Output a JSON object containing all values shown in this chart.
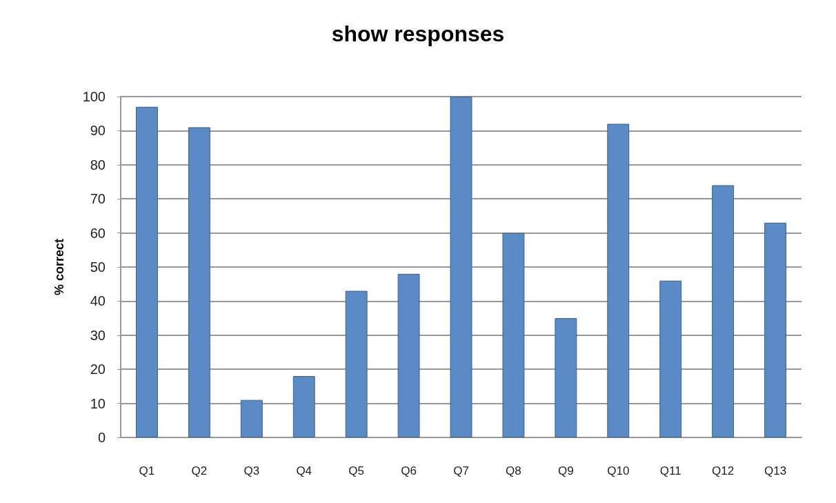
{
  "chart_data": {
    "type": "bar",
    "title": "show responses",
    "ylabel": "% correct",
    "categories": [
      "Q1",
      "Q2",
      "Q3",
      "Q4",
      "Q5",
      "Q6",
      "Q7",
      "Q8",
      "Q9",
      "Q10",
      "Q11",
      "Q12",
      "Q13"
    ],
    "values": [
      97,
      91,
      11,
      18,
      43,
      48,
      100,
      60,
      35,
      92,
      46,
      74,
      63
    ],
    "color": "#5b8bc6",
    "ylim": [
      0,
      100
    ],
    "yticks": [
      0,
      10,
      20,
      30,
      40,
      50,
      60,
      70,
      80,
      90,
      100
    ],
    "grid": "y"
  }
}
